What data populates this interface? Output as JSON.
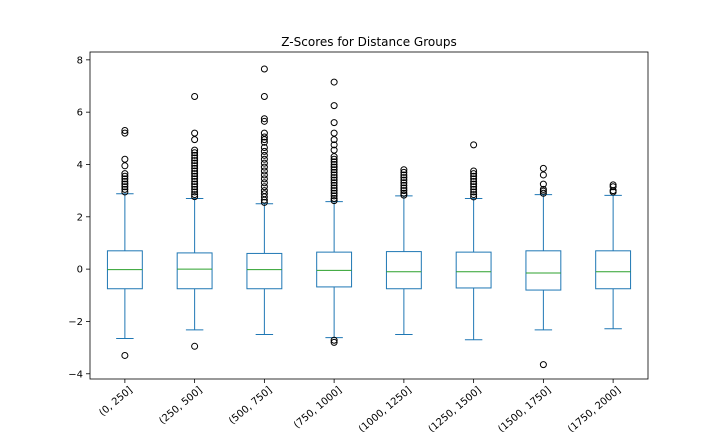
{
  "chart_data": {
    "type": "box",
    "title": "Z-Scores for Distance Groups",
    "xlabel": "",
    "ylabel": "",
    "ylim": [
      -4.2,
      8.3
    ],
    "yticks": [
      -4,
      -2,
      0,
      2,
      4,
      6,
      8
    ],
    "ytick_labels": [
      "−4",
      "−2",
      "0",
      "2",
      "4",
      "6",
      "8"
    ],
    "grid": false,
    "colors": {
      "box": "#1f77b4",
      "median": "#2ca02c",
      "whisker": "#1f77b4",
      "flier": "#000000"
    },
    "categories": [
      "(0, 250]",
      "(250, 500]",
      "(500, 750]",
      "(750, 1000]",
      "(1000, 1250]",
      "(1250, 1500]",
      "(1500, 1750]",
      "(1750, 2000]"
    ],
    "boxes": [
      {
        "category": "(0, 250]",
        "whisker_low": -2.65,
        "q1": -0.75,
        "median": -0.02,
        "q3": 0.7,
        "whisker_high": 2.88,
        "fliers": [
          5.3,
          5.2,
          4.2,
          3.95,
          3.65,
          3.55,
          3.45,
          3.35,
          3.25,
          3.15,
          3.05,
          2.95,
          -3.3
        ]
      },
      {
        "category": "(250, 500]",
        "whisker_low": -2.32,
        "q1": -0.75,
        "median": 0.0,
        "q3": 0.62,
        "whisker_high": 2.7,
        "fliers": [
          6.6,
          5.2,
          4.95,
          4.55,
          4.45,
          4.35,
          4.25,
          4.15,
          4.05,
          3.95,
          3.85,
          3.75,
          3.65,
          3.55,
          3.45,
          3.35,
          3.25,
          3.15,
          3.05,
          2.95,
          2.85,
          2.77,
          -2.95
        ]
      },
      {
        "category": "(500, 750]",
        "whisker_low": -2.5,
        "q1": -0.75,
        "median": -0.02,
        "q3": 0.6,
        "whisker_high": 2.5,
        "fliers": [
          7.65,
          6.6,
          5.75,
          5.65,
          5.2,
          5.05,
          4.95,
          4.85,
          4.65,
          4.5,
          4.35,
          4.2,
          4.05,
          3.9,
          3.75,
          3.6,
          3.45,
          3.3,
          3.15,
          3.0,
          2.88,
          2.76,
          2.64,
          2.55
        ]
      },
      {
        "category": "(750, 1000]",
        "whisker_low": -2.62,
        "q1": -0.68,
        "median": -0.05,
        "q3": 0.65,
        "whisker_high": 2.58,
        "fliers": [
          7.15,
          6.25,
          5.6,
          5.2,
          4.95,
          4.75,
          4.55,
          4.3,
          4.2,
          4.1,
          4.0,
          3.9,
          3.8,
          3.7,
          3.6,
          3.5,
          3.4,
          3.3,
          3.2,
          3.1,
          3.0,
          2.9,
          2.8,
          2.7,
          2.62,
          -2.72,
          -2.8
        ]
      },
      {
        "category": "(1000, 1250]",
        "whisker_low": -2.5,
        "q1": -0.75,
        "median": -0.1,
        "q3": 0.67,
        "whisker_high": 2.8,
        "fliers": [
          3.8,
          3.7,
          3.6,
          3.5,
          3.4,
          3.3,
          3.2,
          3.1,
          3.0,
          2.9,
          2.83
        ]
      },
      {
        "category": "(1250, 1500]",
        "whisker_low": -2.7,
        "q1": -0.72,
        "median": -0.1,
        "q3": 0.65,
        "whisker_high": 2.7,
        "fliers": [
          4.75,
          3.75,
          3.65,
          3.55,
          3.45,
          3.35,
          3.25,
          3.15,
          3.05,
          2.95,
          2.85,
          2.76
        ]
      },
      {
        "category": "(1500, 1750]",
        "whisker_low": -2.32,
        "q1": -0.8,
        "median": -0.15,
        "q3": 0.7,
        "whisker_high": 2.85,
        "fliers": [
          3.85,
          3.6,
          3.25,
          3.05,
          2.98,
          2.9,
          -3.65
        ]
      },
      {
        "category": "(1750, 2000]",
        "whisker_low": -2.28,
        "q1": -0.75,
        "median": -0.1,
        "q3": 0.7,
        "whisker_high": 2.82,
        "fliers": [
          3.22,
          3.15,
          3.0,
          2.95
        ]
      }
    ]
  }
}
